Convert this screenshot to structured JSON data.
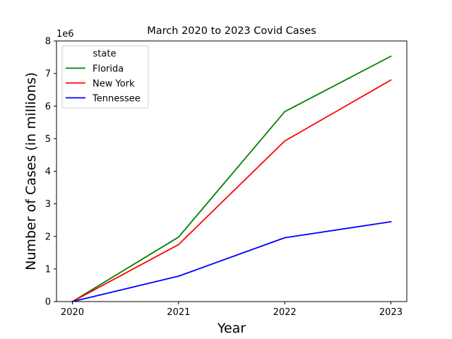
{
  "chart_data": {
    "type": "line",
    "title": "March 2020 to 2023 Covid Cases",
    "xlabel": "Year",
    "ylabel": "Number of Cases (in millions)",
    "y_offset_text": "1e6",
    "x": [
      2020,
      2021,
      2022,
      2023
    ],
    "xticks": [
      "2020",
      "2021",
      "2022",
      "2023"
    ],
    "xlim": [
      2019.85,
      2023.15
    ],
    "ylim": [
      0,
      8000000
    ],
    "yticks": [
      0,
      1000000,
      2000000,
      3000000,
      4000000,
      5000000,
      6000000,
      7000000,
      8000000
    ],
    "ytick_labels": [
      "0",
      "1",
      "2",
      "3",
      "4",
      "5",
      "6",
      "7",
      "8"
    ],
    "grid": false,
    "legend": {
      "title": "state",
      "placement": "top-left"
    },
    "series": [
      {
        "name": "Florida",
        "color": "#008000",
        "values": [
          0,
          1980000,
          5830000,
          7530000
        ]
      },
      {
        "name": "New York",
        "color": "#ff0000",
        "values": [
          0,
          1750000,
          4930000,
          6800000
        ]
      },
      {
        "name": "Tennessee",
        "color": "#0000ff",
        "values": [
          0,
          780000,
          1960000,
          2450000
        ]
      }
    ]
  }
}
